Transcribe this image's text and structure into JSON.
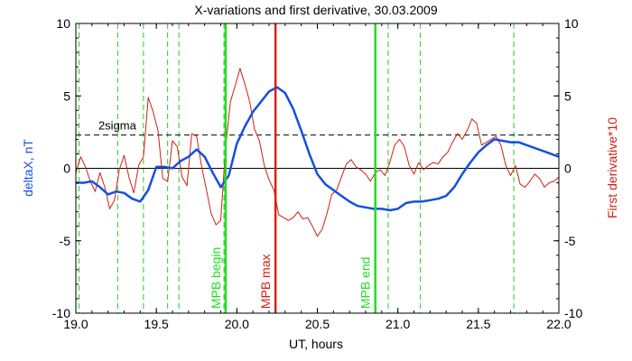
{
  "chart_data": {
    "type": "line",
    "title": "X-variations and first derivative, 30.03.2009",
    "xlabel": "UT, hours",
    "ylabel_left": "deltaX, nT",
    "ylabel_right": "First derivative*10",
    "xlim": [
      19.0,
      22.0
    ],
    "ylim": [
      -10,
      10
    ],
    "xticks": [
      19.0,
      19.5,
      20.0,
      20.5,
      21.0,
      21.5,
      22.0
    ],
    "xtick_labels": [
      "19.0",
      "19.5",
      "20.0",
      "20.5",
      "21.0",
      "21.5",
      "22.0"
    ],
    "yticks": [
      -10,
      -5,
      0,
      5,
      10
    ],
    "ytick_labels": [
      "-10",
      "-5",
      "0",
      "5",
      "10"
    ],
    "colors": {
      "deltaX": "#1450e0",
      "derivative": "#d02010",
      "mpb_begin_end": "#22dd22",
      "mpb_max": "#d82010",
      "dashed_events": "#22cc22",
      "threshold": "#000000"
    },
    "sigma_level": 2.3,
    "sigma_label": "2sigma",
    "event_lines": [
      19.02,
      19.26,
      19.42,
      19.57,
      19.64,
      19.92,
      20.94,
      21.14,
      21.72
    ],
    "markers": [
      {
        "x": 19.93,
        "label": "MPB begin",
        "color": "#22dd22"
      },
      {
        "x": 20.24,
        "label": "MPB max",
        "color": "#d82010"
      },
      {
        "x": 20.86,
        "label": "MPB end",
        "color": "#22dd22"
      }
    ],
    "series": [
      {
        "key": "deltaX",
        "name": "deltaX, nT",
        "x": [
          19.0,
          19.05,
          19.1,
          19.15,
          19.2,
          19.25,
          19.3,
          19.35,
          19.4,
          19.45,
          19.5,
          19.55,
          19.6,
          19.65,
          19.7,
          19.75,
          19.8,
          19.85,
          19.9,
          19.95,
          20.0,
          20.05,
          20.1,
          20.15,
          20.2,
          20.25,
          20.3,
          20.35,
          20.4,
          20.45,
          20.5,
          20.55,
          20.6,
          20.65,
          20.7,
          20.75,
          20.8,
          20.85,
          20.9,
          20.95,
          21.0,
          21.05,
          21.1,
          21.15,
          21.2,
          21.25,
          21.3,
          21.35,
          21.4,
          21.45,
          21.5,
          21.55,
          21.6,
          21.65,
          21.7,
          21.75,
          21.8,
          21.85,
          21.9,
          21.95,
          22.0
        ],
        "values": [
          -1.0,
          -1.0,
          -0.9,
          -1.3,
          -1.8,
          -1.6,
          -1.7,
          -2.1,
          -2.3,
          -1.5,
          0.1,
          0.1,
          0.0,
          0.5,
          0.8,
          1.3,
          0.8,
          -0.3,
          -1.3,
          -0.5,
          1.7,
          2.9,
          3.9,
          4.6,
          5.3,
          5.6,
          5.2,
          4.1,
          2.6,
          1.0,
          -0.4,
          -1.1,
          -1.5,
          -1.9,
          -2.3,
          -2.6,
          -2.7,
          -2.8,
          -2.8,
          -2.9,
          -2.8,
          -2.4,
          -2.3,
          -2.3,
          -2.2,
          -2.1,
          -1.9,
          -1.3,
          -0.4,
          0.4,
          1.1,
          1.6,
          2.0,
          1.9,
          1.8,
          1.8,
          1.6,
          1.4,
          1.2,
          1.0,
          0.8
        ]
      },
      {
        "key": "derivative",
        "name": "First derivative*10",
        "x": [
          19.0,
          19.03,
          19.06,
          19.09,
          19.12,
          19.15,
          19.18,
          19.21,
          19.24,
          19.27,
          19.3,
          19.33,
          19.36,
          19.39,
          19.42,
          19.45,
          19.48,
          19.51,
          19.54,
          19.57,
          19.6,
          19.63,
          19.66,
          19.69,
          19.72,
          19.75,
          19.78,
          19.81,
          19.84,
          19.87,
          19.9,
          19.93,
          19.96,
          19.99,
          20.02,
          20.05,
          20.08,
          20.11,
          20.14,
          20.17,
          20.2,
          20.23,
          20.26,
          20.29,
          20.32,
          20.35,
          20.38,
          20.41,
          20.44,
          20.47,
          20.5,
          20.53,
          20.56,
          20.59,
          20.62,
          20.65,
          20.68,
          20.71,
          20.74,
          20.77,
          20.8,
          20.83,
          20.86,
          20.89,
          20.92,
          20.95,
          20.98,
          21.01,
          21.04,
          21.07,
          21.1,
          21.13,
          21.16,
          21.19,
          21.22,
          21.25,
          21.28,
          21.31,
          21.34,
          21.37,
          21.4,
          21.43,
          21.46,
          21.49,
          21.52,
          21.55,
          21.58,
          21.61,
          21.64,
          21.67,
          21.7,
          21.73,
          21.76,
          21.79,
          21.82,
          21.85,
          21.88,
          21.91,
          21.94,
          21.97,
          22.0
        ],
        "values": [
          -0.3,
          0.8,
          0.1,
          -0.9,
          -1.6,
          -0.3,
          -1.3,
          -2.8,
          -2.2,
          -0.1,
          0.9,
          -0.6,
          -1.7,
          0.2,
          0.8,
          4.9,
          3.9,
          2.6,
          -0.7,
          -0.9,
          1.9,
          1.5,
          -0.6,
          -1.2,
          2.4,
          2.2,
          0.2,
          -1.4,
          -3.1,
          -3.9,
          -3.6,
          1.4,
          4.6,
          5.7,
          6.9,
          5.8,
          4.6,
          2.7,
          1.9,
          0.2,
          -0.8,
          -1.5,
          -3.2,
          -3.4,
          -3.6,
          -3.4,
          -3.0,
          -3.5,
          -3.4,
          -4.0,
          -4.7,
          -4.2,
          -3.1,
          -1.8,
          -1.5,
          -0.6,
          0.3,
          0.6,
          0.1,
          -0.1,
          -0.4,
          -0.9,
          -0.3,
          -0.1,
          -0.5,
          0.4,
          1.6,
          2.0,
          1.5,
          0.2,
          -0.4,
          0.4,
          -0.1,
          0.2,
          0.4,
          0.3,
          0.8,
          1.1,
          1.8,
          2.4,
          2.0,
          2.6,
          3.4,
          3.1,
          1.6,
          1.8,
          2.0,
          2.2,
          1.6,
          0.2,
          -0.5,
          0.2,
          -1.1,
          -1.3,
          -0.9,
          -0.4,
          -0.7,
          -1.3,
          -1.0,
          -0.9,
          -0.6
        ]
      }
    ]
  }
}
